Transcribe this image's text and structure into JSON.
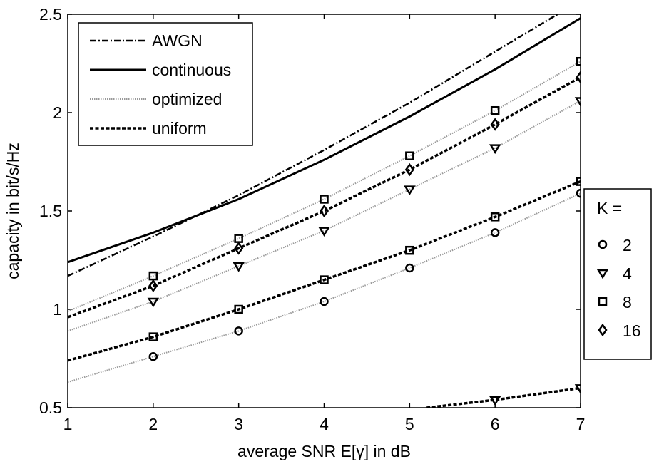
{
  "chart_data": {
    "type": "line",
    "title": "",
    "xlabel": "average SNR E[γ] in dB",
    "ylabel": "capacity in bit/s/Hz",
    "xlim": [
      1,
      7
    ],
    "ylim": [
      0.5,
      2.5
    ],
    "xticks": [
      1,
      2,
      3,
      4,
      5,
      6,
      7
    ],
    "yticks": [
      0.5,
      1,
      1.5,
      2,
      2.5
    ],
    "xtick_labels": [
      "1",
      "2",
      "3",
      "4",
      "5",
      "6",
      "7"
    ],
    "ytick_labels": [
      "0.5",
      "1",
      "1.5",
      "2",
      "2.5"
    ],
    "grid": false,
    "legend_styles": {
      "position": "top-left",
      "entries": [
        {
          "label": "AWGN",
          "style": "dashdot",
          "color": "#000000"
        },
        {
          "label": "continuous",
          "style": "solid",
          "color": "#000000"
        },
        {
          "label": "optimized",
          "style": "dotted",
          "color": "#999999"
        },
        {
          "label": "uniform",
          "style": "dashed",
          "color": "#000000"
        }
      ]
    },
    "legend_k": {
      "position": "outside-right",
      "title": "K =",
      "entries": [
        {
          "label": "2",
          "marker": "circle"
        },
        {
          "label": "4",
          "marker": "triangle-down"
        },
        {
          "label": "8",
          "marker": "square"
        },
        {
          "label": "16",
          "marker": "diamond"
        }
      ]
    },
    "series": [
      {
        "style": "dashdot",
        "x": [
          1,
          2,
          3,
          4,
          5,
          6,
          7
        ],
        "y": [
          1.17,
          1.37,
          1.58,
          1.81,
          2.05,
          2.31,
          2.57
        ]
      },
      {
        "style": "solid",
        "x": [
          1,
          2,
          3,
          4,
          5,
          6,
          7
        ],
        "y": [
          1.24,
          1.39,
          1.56,
          1.76,
          1.98,
          2.22,
          2.48
        ]
      },
      {
        "style": "dotted",
        "K": "8",
        "x": [
          1,
          2,
          3,
          4,
          5,
          6,
          7
        ],
        "y": [
          0.99,
          1.17,
          1.36,
          1.56,
          1.78,
          2.01,
          2.26
        ]
      },
      {
        "style": "dashed",
        "K": "16",
        "x": [
          1,
          2,
          3,
          4,
          5,
          6,
          7
        ],
        "y": [
          0.96,
          1.12,
          1.31,
          1.5,
          1.71,
          1.94,
          2.18
        ]
      },
      {
        "style": "dotted",
        "K": "4",
        "x": [
          1,
          2,
          3,
          4,
          5,
          6,
          7
        ],
        "y": [
          0.89,
          1.04,
          1.22,
          1.4,
          1.61,
          1.82,
          2.06
        ]
      },
      {
        "style": "dashed",
        "K": "8",
        "x": [
          1,
          2,
          3,
          4,
          5,
          6,
          7
        ],
        "y": [
          0.74,
          0.86,
          1.0,
          1.15,
          1.3,
          1.47,
          1.65
        ]
      },
      {
        "style": "dotted",
        "K": "2",
        "x": [
          1,
          2,
          3,
          4,
          5,
          6,
          7
        ],
        "y": [
          0.63,
          0.76,
          0.89,
          1.04,
          1.21,
          1.39,
          1.59
        ]
      },
      {
        "style": "dashed",
        "K": "4",
        "x": [
          5.2,
          6,
          7
        ],
        "y": [
          0.5,
          0.54,
          0.6
        ]
      }
    ]
  }
}
